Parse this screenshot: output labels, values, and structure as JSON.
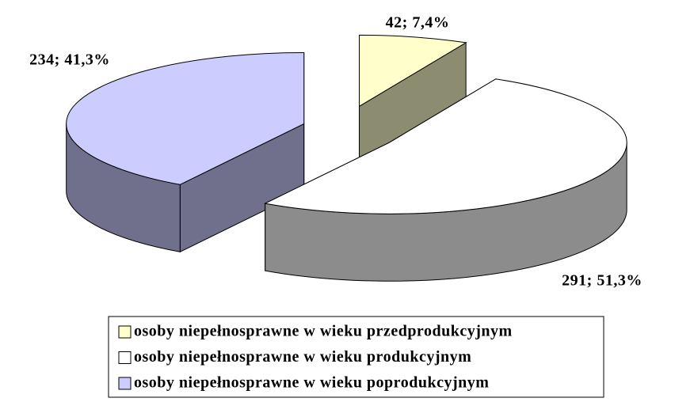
{
  "chart_data": {
    "type": "pie3d",
    "categories": [
      "osoby niepełnosprawne w wieku przedprodukcyjnym",
      "osoby niepełnosprawne w wieku produkcyjnym",
      "osoby niepełnosprawne w wieku poprodukcyjnym"
    ],
    "values": [
      42,
      291,
      234
    ],
    "value_labels": [
      "42; 7,4%",
      "291; 51,3%",
      "234; 41,3%"
    ],
    "colors": [
      "#ffffcc",
      "#ffffff",
      "#ccccff"
    ],
    "legend": "bottom"
  }
}
